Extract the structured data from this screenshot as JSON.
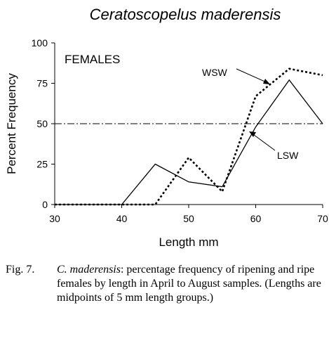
{
  "chart_data": {
    "type": "line",
    "title": "Ceratoscopelus maderensis",
    "panel_label": "FEMALES",
    "xlabel": "Length mm",
    "ylabel": "Percent Frequency",
    "xlim": [
      30,
      70
    ],
    "ylim": [
      0,
      100
    ],
    "xticks": [
      30,
      40,
      50,
      60,
      70
    ],
    "yticks": [
      0,
      25,
      50,
      75,
      100
    ],
    "grid": false,
    "reference_line": {
      "y": 50,
      "style": "dash-dot"
    },
    "series": [
      {
        "name": "LSW",
        "style": "solid",
        "x": [
          30,
          35,
          40,
          45,
          50,
          55,
          60,
          65,
          70
        ],
        "y": [
          0,
          0,
          0,
          25,
          14,
          11,
          48,
          77,
          50
        ]
      },
      {
        "name": "WSW",
        "style": "dotted",
        "x": [
          30,
          35,
          40,
          45,
          50,
          55,
          60,
          65,
          70
        ],
        "y": [
          0,
          0,
          0,
          0,
          29,
          8,
          67,
          84,
          80
        ]
      }
    ],
    "annotations": [
      {
        "text": "WSW",
        "points_to": "WSW"
      },
      {
        "text": "LSW",
        "points_to": "LSW"
      }
    ]
  },
  "caption": {
    "figure_label": "Fig. 7.",
    "species": "C. maderensis",
    "text": ": percentage frequency of ripening and ripe females by length in April to August samples. (Lengths are midpoints of 5 mm length groups.)"
  }
}
